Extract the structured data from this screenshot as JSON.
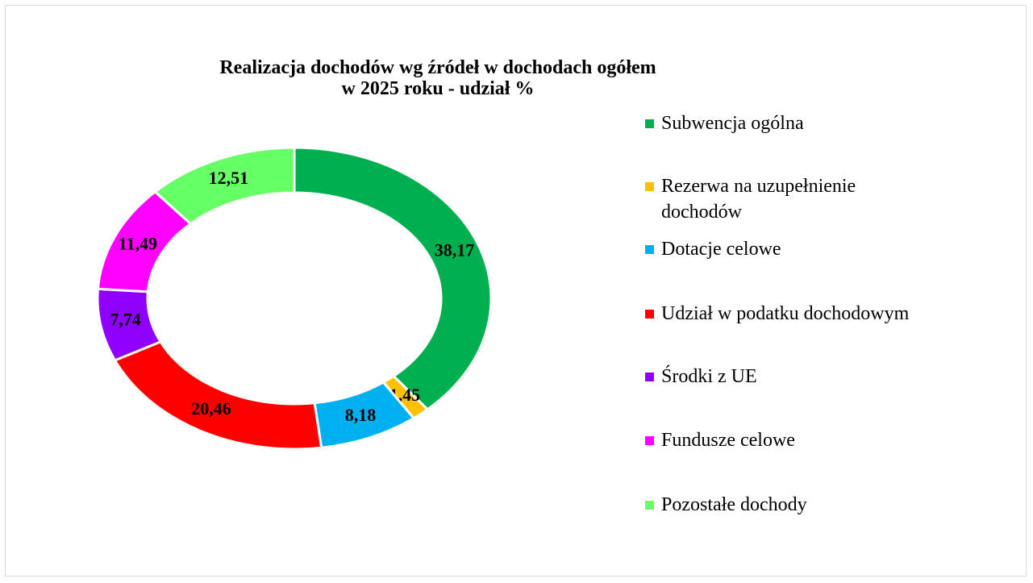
{
  "chart_data": {
    "type": "donut",
    "title": [
      "Realizacja dochodów wg źródeł w dochodach ogółem",
      "w 2025 roku - udział %"
    ],
    "categories": [
      "Subwencja ogólna",
      "Rezerwa na uzupełnienie dochodów",
      "Dotacje celowe",
      "Udział w podatku dochodowym",
      "Środki z UE",
      "Fundusze celowe",
      "Pozostałe dochody"
    ],
    "values": [
      38.17,
      1.45,
      8.18,
      20.46,
      7.74,
      11.49,
      12.51
    ],
    "value_labels": [
      "38,17",
      "1,45",
      "8,18",
      "20,46",
      "7,74",
      "11,49",
      "12,51"
    ],
    "colors": [
      "#00b050",
      "#ffc000",
      "#00b0f0",
      "#ff0000",
      "#8f00ff",
      "#ff00ff",
      "#66ff66"
    ],
    "legend": "right"
  }
}
